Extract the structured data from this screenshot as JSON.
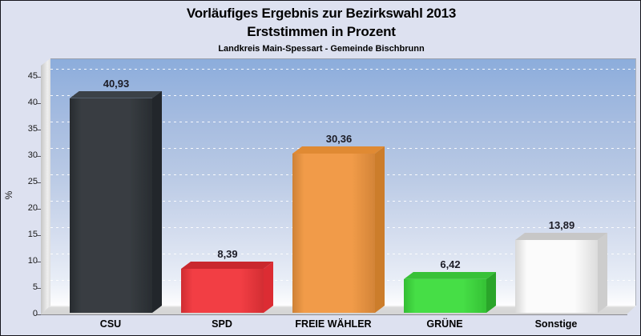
{
  "header": {
    "title": "Vorläufiges Ergebnis zur Bezirkswahl 2013",
    "subtitle": "Erststimmen in Prozent",
    "region": "Landkreis Main-Spessart - Gemeinde Bischbrunn"
  },
  "chart_data": {
    "type": "bar",
    "style": "3d-column",
    "title": "Vorläufiges Ergebnis zur Bezirkswahl 2013",
    "subtitle": "Erststimmen in Prozent",
    "annotation": "Landkreis Main-Spessart - Gemeinde Bischbrunn",
    "xlabel": "",
    "ylabel": "%",
    "ylim": [
      0,
      45
    ],
    "yticks": [
      0,
      5,
      10,
      15,
      20,
      25,
      30,
      35,
      40,
      45
    ],
    "grid": "horizontal-dashed-white",
    "legend": "none",
    "categories": [
      "CSU",
      "SPD",
      "FREIE WÄHLER",
      "GRÜNE",
      "Sonstige"
    ],
    "values": [
      40.93,
      8.39,
      30.36,
      6.42,
      13.89
    ],
    "value_labels": [
      "40,93",
      "8,39",
      "30,36",
      "6,42",
      "13,89"
    ],
    "bar_colors": [
      {
        "party": "CSU",
        "front": "#2e3338",
        "top": "#3b4147",
        "side": "#22262b"
      },
      {
        "party": "SPD",
        "front": "#f1343a",
        "top": "#c9282e",
        "side": "#dc2c33"
      },
      {
        "party": "FREIE WÄHLER",
        "front": "#f0963f",
        "top": "#e08a33",
        "side": "#cc7d2b"
      },
      {
        "party": "GRÜNE",
        "front": "#3cdc3c",
        "top": "#38c138",
        "side": "#2aa52a"
      },
      {
        "party": "Sonstige",
        "front": "#fbfbfb",
        "top": "#c7c7c7",
        "side": "#cdcdcd"
      }
    ]
  },
  "colors": {
    "page_background": "#dde1f0",
    "plot_gradient_top": "#8caddc",
    "plot_gradient_bottom": "#fdfdfe",
    "wall_gray": "#d9d9d9",
    "gridline": "#ffffff",
    "value_label": "#1c1c26",
    "tick_label": "#1a1a1a",
    "title_text": "#000000"
  }
}
